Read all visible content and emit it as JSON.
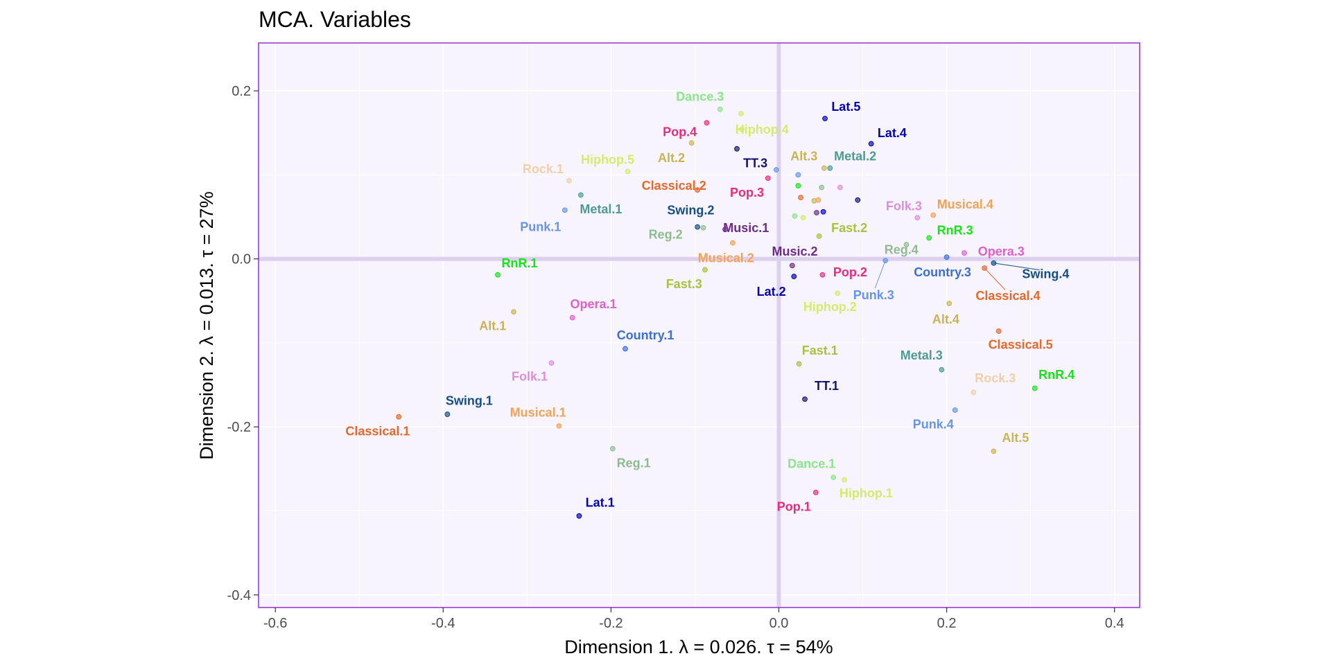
{
  "chart_data": {
    "type": "scatter",
    "title": "MCA. Variables",
    "xlabel": "Dimension 1.   λ = 0.026.  τ = 54%",
    "ylabel": "Dimension 2.   λ = 0.013.  τ = 27%",
    "xlim": [
      -0.62,
      0.43
    ],
    "ylim": [
      -0.415,
      0.257
    ],
    "x_ticks": [
      -0.6,
      -0.4,
      -0.2,
      0.0,
      0.2,
      0.4
    ],
    "x_tick_labels": [
      "-0.6",
      "-0.4",
      "-0.2",
      "0.0",
      "0.2",
      "0.4"
    ],
    "y_ticks": [
      -0.4,
      -0.2,
      0.0,
      0.2
    ],
    "y_tick_labels": [
      "-0.4",
      "-0.2",
      "0.0",
      "0.2"
    ],
    "grid": true,
    "reference_lines": {
      "x": 0,
      "y": 0
    },
    "colors": {
      "panel_background": "#f7f4fd",
      "panel_border": "#a64fdb",
      "reference_line": "#ddd0ee"
    },
    "points": [
      {
        "label": "Dance.3",
        "x": -0.07,
        "y": 0.178,
        "lx": -0.094,
        "ly": 0.193,
        "color": "#8ae68a"
      },
      {
        "label": "Lat.5",
        "x": 0.055,
        "y": 0.167,
        "lx": 0.08,
        "ly": 0.181,
        "color": "#0000b8"
      },
      {
        "label": "Pop.4",
        "x": -0.086,
        "y": 0.162,
        "lx": -0.118,
        "ly": 0.151,
        "color": "#f0287a"
      },
      {
        "label": "Lat.4",
        "x": 0.11,
        "y": 0.137,
        "lx": 0.135,
        "ly": 0.15,
        "color": "#0000b8"
      },
      {
        "label": "Hiphop.4",
        "x": -0.045,
        "y": 0.173,
        "lx": -0.02,
        "ly": 0.154,
        "color": "#d3ec6a"
      },
      {
        "label": "Alt.2",
        "x": -0.104,
        "y": 0.138,
        "lx": -0.128,
        "ly": 0.12,
        "color": "#c9b455"
      },
      {
        "label": "TT.3",
        "x": -0.05,
        "y": 0.131,
        "lx": -0.028,
        "ly": 0.114,
        "color": "#14146e"
      },
      {
        "label": "Alt.3",
        "x": 0.054,
        "y": 0.108,
        "lx": 0.03,
        "ly": 0.122,
        "color": "#c9b455"
      },
      {
        "label": "Metal.2",
        "x": 0.061,
        "y": 0.108,
        "lx": 0.091,
        "ly": 0.122,
        "color": "#4c9b92"
      },
      {
        "label": "Hiphop.5",
        "x": -0.18,
        "y": 0.104,
        "lx": -0.204,
        "ly": 0.118,
        "color": "#d3ec6a"
      },
      {
        "label": "Rock.1",
        "x": -0.25,
        "y": 0.093,
        "lx": -0.281,
        "ly": 0.107,
        "color": "#f2cfa6"
      },
      {
        "label": "Classical.2",
        "x": -0.097,
        "y": 0.082,
        "lx": -0.125,
        "ly": 0.087,
        "color": "#e8672b"
      },
      {
        "label": "Pop.3",
        "x": -0.013,
        "y": 0.096,
        "lx": -0.038,
        "ly": 0.079,
        "color": "#f0287a"
      },
      {
        "label": "Metal.1",
        "x": -0.236,
        "y": 0.076,
        "lx": -0.212,
        "ly": 0.059,
        "color": "#4c9b92"
      },
      {
        "label": "Folk.3",
        "x": 0.165,
        "y": 0.049,
        "lx": 0.149,
        "ly": 0.063,
        "color": "#dc8fd9"
      },
      {
        "label": "Musical.4",
        "x": 0.184,
        "y": 0.052,
        "lx": 0.222,
        "ly": 0.065,
        "color": "#f6a254"
      },
      {
        "label": "Swing.2",
        "x": -0.097,
        "y": 0.038,
        "lx": -0.105,
        "ly": 0.058,
        "color": "#144e87"
      },
      {
        "label": "Punk.1",
        "x": -0.255,
        "y": 0.058,
        "lx": -0.284,
        "ly": 0.038,
        "color": "#6495ed"
      },
      {
        "label": "Music.1",
        "x": -0.064,
        "y": 0.035,
        "lx": -0.039,
        "ly": 0.037,
        "color": "#6e2a8a"
      },
      {
        "label": "Fast.2",
        "x": 0.048,
        "y": 0.027,
        "lx": 0.084,
        "ly": 0.037,
        "color": "#a7c33e"
      },
      {
        "label": "Reg.2",
        "x": -0.09,
        "y": 0.037,
        "lx": -0.135,
        "ly": 0.029,
        "color": "#8fbc8f"
      },
      {
        "label": "RnR.3",
        "x": 0.179,
        "y": 0.025,
        "lx": 0.21,
        "ly": 0.034,
        "color": "#14e614"
      },
      {
        "label": "Reg.4",
        "x": 0.152,
        "y": 0.017,
        "lx": 0.146,
        "ly": 0.011,
        "color": "#8fbc8f"
      },
      {
        "label": "Opera.3",
        "x": 0.221,
        "y": 0.007,
        "lx": 0.265,
        "ly": 0.009,
        "color": "#e25ecf"
      },
      {
        "label": "Musical.2",
        "x": -0.055,
        "y": 0.019,
        "lx": -0.063,
        "ly": 0.001,
        "color": "#f6a254"
      },
      {
        "label": "Music.2",
        "x": 0.016,
        "y": -0.008,
        "lx": 0.019,
        "ly": 0.009,
        "color": "#6e2a8a"
      },
      {
        "label": "Swing.4",
        "x": 0.256,
        "y": -0.005,
        "lx": 0.318,
        "ly": -0.018,
        "color": "#144e87"
      },
      {
        "label": "Country.3",
        "x": 0.2,
        "y": 0.002,
        "lx": 0.195,
        "ly": -0.016,
        "color": "#3a6ed8"
      },
      {
        "label": "RnR.1",
        "x": -0.335,
        "y": -0.019,
        "lx": -0.309,
        "ly": -0.005,
        "color": "#14e614"
      },
      {
        "label": "Classical.4",
        "x": 0.245,
        "y": -0.011,
        "lx": 0.273,
        "ly": -0.044,
        "color": "#e8672b"
      },
      {
        "label": "Pop.2",
        "x": 0.052,
        "y": -0.019,
        "lx": 0.085,
        "ly": -0.016,
        "color": "#f0287a"
      },
      {
        "label": "Fast.3",
        "x": -0.088,
        "y": -0.013,
        "lx": -0.113,
        "ly": -0.03,
        "color": "#a7c33e"
      },
      {
        "label": "Punk.3",
        "x": 0.127,
        "y": -0.002,
        "lx": 0.113,
        "ly": -0.043,
        "color": "#6495ed"
      },
      {
        "label": "Lat.2",
        "x": 0.018,
        "y": -0.021,
        "lx": -0.009,
        "ly": -0.039,
        "color": "#0000b8"
      },
      {
        "label": "Alt.4",
        "x": 0.203,
        "y": -0.053,
        "lx": 0.199,
        "ly": -0.072,
        "color": "#c9b455"
      },
      {
        "label": "Hiphop.2",
        "x": 0.07,
        "y": -0.041,
        "lx": 0.061,
        "ly": -0.057,
        "color": "#d3ec6a"
      },
      {
        "label": "Opera.1",
        "x": -0.246,
        "y": -0.07,
        "lx": -0.221,
        "ly": -0.054,
        "color": "#e25ecf"
      },
      {
        "label": "Alt.1",
        "x": -0.316,
        "y": -0.063,
        "lx": -0.341,
        "ly": -0.08,
        "color": "#c9b455"
      },
      {
        "label": "Classical.5",
        "x": 0.262,
        "y": -0.086,
        "lx": 0.288,
        "ly": -0.102,
        "color": "#e8672b"
      },
      {
        "label": "Country.1",
        "x": -0.183,
        "y": -0.107,
        "lx": -0.159,
        "ly": -0.091,
        "color": "#3a6ed8"
      },
      {
        "label": "Fast.1",
        "x": 0.024,
        "y": -0.125,
        "lx": 0.049,
        "ly": -0.109,
        "color": "#a7c33e"
      },
      {
        "label": "Metal.3",
        "x": 0.194,
        "y": -0.132,
        "lx": 0.17,
        "ly": -0.115,
        "color": "#4c9b92"
      },
      {
        "label": "Folk.1",
        "x": -0.271,
        "y": -0.124,
        "lx": -0.297,
        "ly": -0.14,
        "color": "#dc8fd9"
      },
      {
        "label": "RnR.4",
        "x": 0.305,
        "y": -0.154,
        "lx": 0.331,
        "ly": -0.138,
        "color": "#14e614"
      },
      {
        "label": "Rock.3",
        "x": 0.232,
        "y": -0.159,
        "lx": 0.258,
        "ly": -0.142,
        "color": "#f2cfa6"
      },
      {
        "label": "TT.1",
        "x": 0.031,
        "y": -0.167,
        "lx": 0.057,
        "ly": -0.151,
        "color": "#14146e"
      },
      {
        "label": "Swing.1",
        "x": -0.395,
        "y": -0.185,
        "lx": -0.369,
        "ly": -0.169,
        "color": "#144e87"
      },
      {
        "label": "Punk.4",
        "x": 0.21,
        "y": -0.18,
        "lx": 0.184,
        "ly": -0.197,
        "color": "#6495ed"
      },
      {
        "label": "Musical.1",
        "x": -0.262,
        "y": -0.199,
        "lx": -0.287,
        "ly": -0.183,
        "color": "#f6a254"
      },
      {
        "label": "Classical.1",
        "x": -0.453,
        "y": -0.188,
        "lx": -0.478,
        "ly": -0.205,
        "color": "#e8672b"
      },
      {
        "label": "Alt.5",
        "x": 0.256,
        "y": -0.229,
        "lx": 0.282,
        "ly": -0.213,
        "color": "#c9b455"
      },
      {
        "label": "Reg.1",
        "x": -0.198,
        "y": -0.226,
        "lx": -0.173,
        "ly": -0.243,
        "color": "#8fbc8f"
      },
      {
        "label": "Dance.1",
        "x": 0.065,
        "y": -0.26,
        "lx": 0.039,
        "ly": -0.244,
        "color": "#8ae68a"
      },
      {
        "label": "Hiphop.1",
        "x": 0.078,
        "y": -0.263,
        "lx": 0.104,
        "ly": -0.279,
        "color": "#d3ec6a"
      },
      {
        "label": "Pop.1",
        "x": 0.044,
        "y": -0.278,
        "lx": 0.018,
        "ly": -0.295,
        "color": "#f0287a"
      },
      {
        "label": "Lat.1",
        "x": -0.238,
        "y": -0.306,
        "lx": -0.213,
        "ly": -0.29,
        "color": "#0000b8"
      }
    ],
    "extra_points": [
      {
        "x": -0.044,
        "y": 0.154,
        "color": "#d3ec6a"
      },
      {
        "x": -0.003,
        "y": 0.106,
        "color": "#6495ed"
      },
      {
        "x": 0.023,
        "y": 0.1,
        "color": "#6495ed"
      },
      {
        "x": 0.023,
        "y": 0.087,
        "color": "#14e614"
      },
      {
        "x": 0.051,
        "y": 0.085,
        "color": "#8fbc8f"
      },
      {
        "x": 0.073,
        "y": 0.085,
        "color": "#dc8fd9"
      },
      {
        "x": 0.026,
        "y": 0.073,
        "color": "#e8672b"
      },
      {
        "x": 0.042,
        "y": 0.069,
        "color": "#c9b455"
      },
      {
        "x": 0.047,
        "y": 0.07,
        "color": "#f6a254"
      },
      {
        "x": 0.094,
        "y": 0.07,
        "color": "#14146e"
      },
      {
        "x": 0.045,
        "y": 0.055,
        "color": "#6e2a8a"
      },
      {
        "x": 0.053,
        "y": 0.056,
        "color": "#0000b8"
      },
      {
        "x": 0.019,
        "y": 0.051,
        "color": "#8ae68a"
      },
      {
        "x": 0.029,
        "y": 0.049,
        "color": "#d3ec6a"
      }
    ]
  }
}
